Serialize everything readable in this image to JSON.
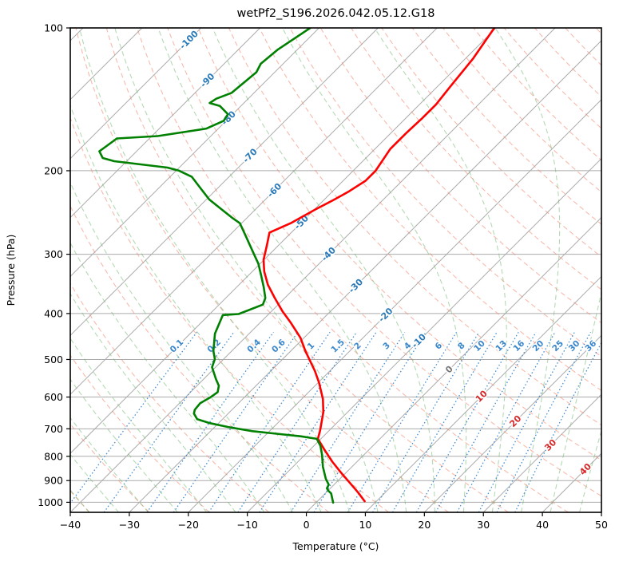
{
  "title": "wetPf2_S196.2026.042.05.12.G18",
  "axes": {
    "x_label": "Temperature (°C)",
    "y_label": "Pressure (hPa)",
    "x_tick_labels": [
      "−40",
      "−30",
      "−20",
      "−10",
      "0",
      "10",
      "20",
      "30",
      "40",
      "50"
    ],
    "x_tick_values": [
      -40,
      -30,
      -20,
      -10,
      0,
      10,
      20,
      30,
      40,
      50
    ],
    "y_tick_labels": [
      "100",
      "200",
      "300",
      "400",
      "500",
      "600",
      "700",
      "800",
      "900",
      "1000"
    ],
    "y_tick_values": [
      100,
      200,
      300,
      400,
      500,
      600,
      700,
      800,
      900,
      1000
    ]
  },
  "colors": {
    "temperature": "#ff0000",
    "dewpoint": "#008000",
    "grid": "#ababab",
    "isotherm": "#ababab",
    "dry_adiabat": "#f08268",
    "moist_adiabat": "#6ab36a",
    "mixing_ratio": "#3a87cc",
    "label_blue": "#2a7ab9",
    "label_gray": "#777777",
    "label_red": "#d62728",
    "axis": "#000000"
  },
  "chart_data": {
    "type": "line",
    "subtype": "skew-t-log-p",
    "title": "wetPf2_S196.2026.042.05.12.G18",
    "xlabel": "Temperature (°C)",
    "ylabel": "Pressure (hPa)",
    "x_range": [
      -40,
      50
    ],
    "p_range": [
      100,
      1050
    ],
    "skew_deg": 45,
    "grid": true,
    "isotherm_step": 10,
    "isotherm_min": -130,
    "isotherm_max": 50,
    "dry_adiabats": {
      "start": -40,
      "end": 200,
      "step": 10
    },
    "moist_adiabats": {
      "start": -40,
      "end": 45,
      "step": 5
    },
    "mixing_ratio_values": [
      0.1,
      0.2,
      0.4,
      0.6,
      1,
      1.5,
      2,
      3,
      4,
      6,
      8,
      10,
      13,
      16,
      20,
      25,
      30,
      36
    ],
    "mixing_ratio_label_pressure": 478,
    "mixing_ratio_top_pressure": 438,
    "isotherm_labels": [
      {
        "t": -100,
        "p": 106,
        "label": "-100",
        "color": "label_blue"
      },
      {
        "t": -90,
        "p": 129,
        "label": "-90",
        "color": "label_blue"
      },
      {
        "t": -80,
        "p": 155,
        "label": "-80",
        "color": "label_blue"
      },
      {
        "t": -70,
        "p": 186,
        "label": "-70",
        "color": "label_blue"
      },
      {
        "t": -60,
        "p": 220,
        "label": "-60",
        "color": "label_blue"
      },
      {
        "t": -50,
        "p": 257,
        "label": "-50",
        "color": "label_blue"
      },
      {
        "t": -40,
        "p": 300,
        "label": "-40",
        "color": "label_blue"
      },
      {
        "t": -30,
        "p": 350,
        "label": "-30",
        "color": "label_blue"
      },
      {
        "t": -20,
        "p": 403,
        "label": "-20",
        "color": "label_blue"
      },
      {
        "t": -10,
        "p": 457,
        "label": "-10",
        "color": "label_blue"
      },
      {
        "t": 0,
        "p": 525,
        "label": "0",
        "color": "label_gray"
      },
      {
        "t": 10,
        "p": 598,
        "label": "10",
        "color": "label_red"
      },
      {
        "t": 20,
        "p": 675,
        "label": "20",
        "color": "label_red"
      },
      {
        "t": 30,
        "p": 758,
        "label": "30",
        "color": "label_red"
      },
      {
        "t": 40,
        "p": 852,
        "label": "40",
        "color": "label_red"
      }
    ],
    "series": [
      {
        "name": "temperature",
        "color_key": "temperature",
        "points_p_t": [
          [
            100,
            -50.3
          ],
          [
            116,
            -48.7
          ],
          [
            133,
            -47.8
          ],
          [
            145,
            -47.2
          ],
          [
            155,
            -47.2
          ],
          [
            167,
            -47.4
          ],
          [
            180,
            -47.4
          ],
          [
            200,
            -46.2
          ],
          [
            210,
            -46.2
          ],
          [
            221,
            -47.2
          ],
          [
            230,
            -48.3
          ],
          [
            241,
            -49.8
          ],
          [
            258,
            -51.7
          ],
          [
            270,
            -53.7
          ],
          [
            288,
            -51.9
          ],
          [
            308,
            -50.1
          ],
          [
            326,
            -48.0
          ],
          [
            348,
            -45.1
          ],
          [
            371,
            -41.7
          ],
          [
            396,
            -38.1
          ],
          [
            419,
            -34.7
          ],
          [
            450,
            -30.6
          ],
          [
            480,
            -27.5
          ],
          [
            529,
            -22.5
          ],
          [
            560,
            -19.8
          ],
          [
            606,
            -16.4
          ],
          [
            646,
            -14.1
          ],
          [
            707,
            -11.5
          ],
          [
            735,
            -10.5
          ],
          [
            774,
            -7.6
          ],
          [
            821,
            -4.2
          ],
          [
            864,
            -1.0
          ],
          [
            916,
            2.8
          ],
          [
            952,
            5.3
          ],
          [
            995,
            8.0
          ]
        ]
      },
      {
        "name": "dewpoint",
        "color_key": "dewpoint",
        "points_p_t": [
          [
            100,
            -81.5
          ],
          [
            111,
            -83.3
          ],
          [
            119,
            -83.8
          ],
          [
            124,
            -83.1
          ],
          [
            137,
            -83.8
          ],
          [
            141,
            -85.4
          ],
          [
            144,
            -85.8
          ],
          [
            146,
            -83.6
          ],
          [
            152,
            -80.8
          ],
          [
            157,
            -80.4
          ],
          [
            163,
            -82.0
          ],
          [
            169,
            -89.0
          ],
          [
            171,
            -95.5
          ],
          [
            182,
            -96.3
          ],
          [
            188,
            -94.6
          ],
          [
            191,
            -92.1
          ],
          [
            197,
            -82.0
          ],
          [
            200,
            -79.5
          ],
          [
            206,
            -76.3
          ],
          [
            217,
            -73.1
          ],
          [
            230,
            -69.5
          ],
          [
            242,
            -65.5
          ],
          [
            252,
            -62.3
          ],
          [
            258,
            -60.3
          ],
          [
            272,
            -57.6
          ],
          [
            302,
            -52.3
          ],
          [
            314,
            -50.3
          ],
          [
            332,
            -47.9
          ],
          [
            352,
            -45.4
          ],
          [
            371,
            -43.3
          ],
          [
            383,
            -42.6
          ],
          [
            401,
            -45.1
          ],
          [
            403,
            -47.6
          ],
          [
            441,
            -45.8
          ],
          [
            480,
            -43.1
          ],
          [
            499,
            -41.5
          ],
          [
            519,
            -40.6
          ],
          [
            550,
            -37.9
          ],
          [
            568,
            -36.3
          ],
          [
            586,
            -35.4
          ],
          [
            602,
            -35.8
          ],
          [
            618,
            -36.5
          ],
          [
            638,
            -36.3
          ],
          [
            650,
            -35.8
          ],
          [
            668,
            -34.3
          ],
          [
            681,
            -31.5
          ],
          [
            694,
            -27.7
          ],
          [
            708,
            -22.9
          ],
          [
            717,
            -18.4
          ],
          [
            726,
            -13.9
          ],
          [
            735,
            -10.7
          ],
          [
            760,
            -8.9
          ],
          [
            794,
            -7.1
          ],
          [
            842,
            -4.9
          ],
          [
            892,
            -2.4
          ],
          [
            918,
            -0.9
          ],
          [
            934,
            -0.6
          ],
          [
            946,
            0.1
          ],
          [
            958,
            1.0
          ],
          [
            1002,
            2.9
          ]
        ]
      }
    ]
  }
}
